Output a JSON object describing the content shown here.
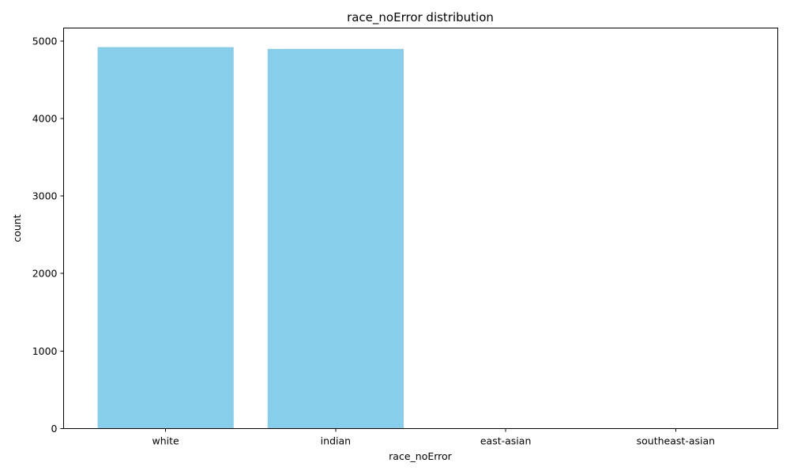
{
  "chart_data": {
    "type": "bar",
    "title": "race_noError distribution",
    "xlabel": "race_noError",
    "ylabel": "count",
    "categories": [
      "white",
      "indian",
      "east-asian",
      "southeast-asian"
    ],
    "values": [
      4920,
      4897,
      0,
      0
    ],
    "yticks": [
      0,
      1000,
      2000,
      3000,
      4000,
      5000
    ],
    "ylim": [
      0,
      5166
    ],
    "bar_color": "#87CEEB",
    "grid": false,
    "legend": "none"
  }
}
